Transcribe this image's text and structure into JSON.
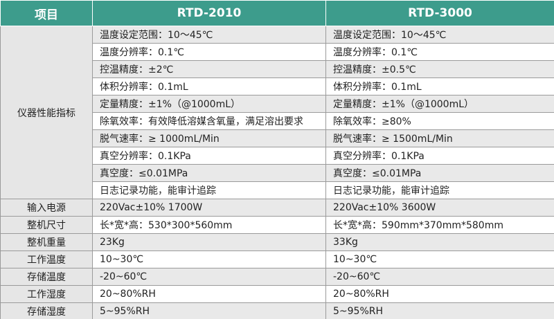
{
  "table": {
    "header": [
      "项目",
      "RTD-2010",
      "RTD-3000"
    ],
    "rows": [
      {
        "label": "仪器性能指标",
        "cells": [
          [
            "温度设定范围：10～45℃",
            "温度设定范围：10～45℃"
          ],
          [
            "温度分辨率：0.1℃",
            "温度分辨率：0.1℃"
          ],
          [
            "控温精度：±2℃",
            "控温精度：±0.5℃"
          ],
          [
            "体积分辨率：0.1mL",
            "体积分辨率：0.1mL"
          ],
          [
            "定量精度：±1%（@1000mL）",
            "定量精度：±1%（@1000mL）"
          ],
          [
            "除氧效率：有效降低溶媒含氧量，满足溶出要求",
            "除氧效率：≥80%"
          ],
          [
            "脱气速率：≥ 1000mL/Min",
            "脱气速率：≥ 1500mL/Min"
          ],
          [
            "真空分辨率：0.1KPa",
            "真空分辨率：0.1KPa"
          ],
          [
            "真空度：≤0.01MPa",
            "真空度：≤0.01MPa"
          ],
          [
            "日志记录功能，能审计追踪",
            "日志记录功能，能审计追踪"
          ]
        ]
      },
      {
        "label": "输入电源",
        "cells": [
          [
            "220Vac±10% 1700W",
            "220Vac±10% 3600W"
          ]
        ]
      },
      {
        "label": "整机尺寸",
        "cells": [
          [
            "长*宽*高：530*300*560mm",
            "长*宽*高：590mm*370mm*580mm"
          ]
        ]
      },
      {
        "label": "整机重量",
        "cells": [
          [
            "23Kg",
            "33Kg"
          ]
        ]
      },
      {
        "label": "工作温度",
        "cells": [
          [
            "10~30℃",
            "10~30℃"
          ]
        ]
      },
      {
        "label": "存储温度",
        "cells": [
          [
            "-20~60℃",
            "-20~60℃"
          ]
        ]
      },
      {
        "label": "工作湿度",
        "cells": [
          [
            "20~80%RH",
            "20~80%RH"
          ]
        ]
      },
      {
        "label": "存储湿度",
        "cells": [
          [
            "5~95%RH",
            "5~95%RH"
          ]
        ]
      }
    ]
  }
}
